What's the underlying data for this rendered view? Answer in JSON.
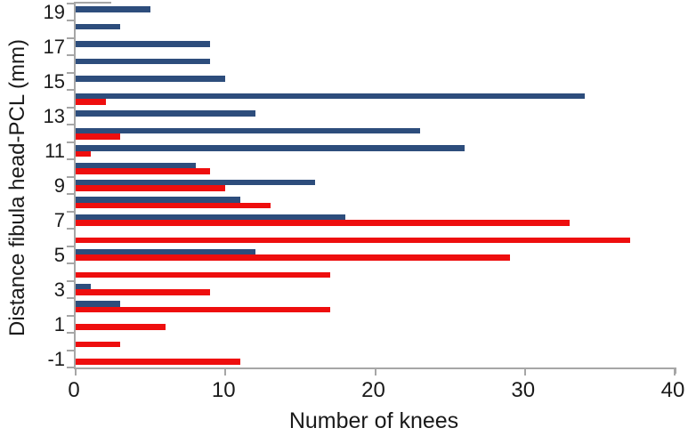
{
  "chart_data": {
    "type": "bar",
    "orientation": "horizontal",
    "title": "",
    "xlabel": "Number of knees",
    "ylabel": "Distance fibula head-PCL (mm)",
    "xlim": [
      0,
      40
    ],
    "xticks": [
      0,
      10,
      20,
      30,
      40
    ],
    "categories": [
      19,
      18,
      17,
      16,
      15,
      14,
      13,
      12,
      11,
      10,
      9,
      8,
      7,
      6,
      5,
      4,
      3,
      2,
      1,
      0,
      -1
    ],
    "ytick_labeled": [
      19,
      17,
      15,
      13,
      11,
      9,
      7,
      5,
      3,
      1,
      -1
    ],
    "series": [
      {
        "name": "blue-series",
        "color": "#2d4d7c",
        "values": [
          5,
          3,
          9,
          9,
          10,
          34,
          12,
          23,
          26,
          8,
          16,
          11,
          18,
          0,
          12,
          0,
          1,
          3,
          0,
          0,
          0
        ]
      },
      {
        "name": "red-series",
        "color": "#ee0e0e",
        "values": [
          0,
          0,
          0,
          0,
          0,
          2,
          0,
          3,
          1,
          9,
          10,
          13,
          33,
          37,
          29,
          17,
          9,
          17,
          6,
          3,
          11
        ]
      }
    ],
    "grid": false,
    "legend": "none",
    "axis_color": "#a6a6a6",
    "text_color": "#1a1a1a"
  }
}
